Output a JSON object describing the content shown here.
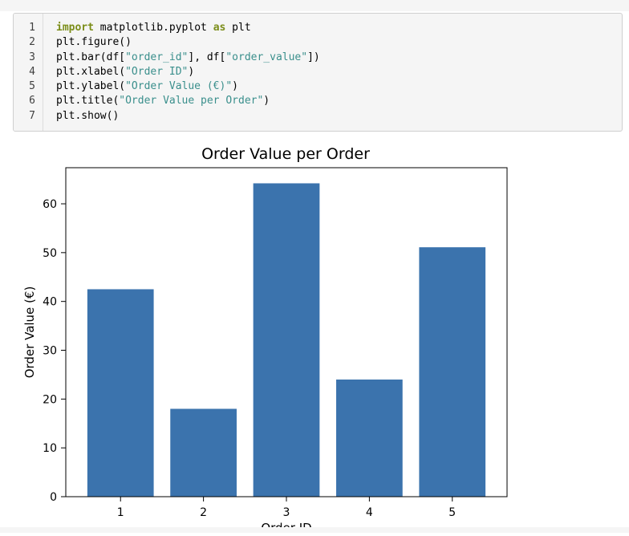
{
  "code_cell": {
    "lines": [
      {
        "n": "1",
        "tokens": [
          {
            "t": "import",
            "k": "kw"
          },
          {
            "t": " matplotlib.pyplot ",
            "k": ""
          },
          {
            "t": "as",
            "k": "kw"
          },
          {
            "t": " plt",
            "k": ""
          }
        ]
      },
      {
        "n": "2",
        "tokens": [
          {
            "t": "plt.figure()",
            "k": ""
          }
        ]
      },
      {
        "n": "3",
        "tokens": [
          {
            "t": "plt.bar(df[",
            "k": ""
          },
          {
            "t": "\"order_id\"",
            "k": "str"
          },
          {
            "t": "], df[",
            "k": ""
          },
          {
            "t": "\"order_value\"",
            "k": "str"
          },
          {
            "t": "])",
            "k": ""
          }
        ]
      },
      {
        "n": "4",
        "tokens": [
          {
            "t": "plt.xlabel(",
            "k": ""
          },
          {
            "t": "\"Order ID\"",
            "k": "str"
          },
          {
            "t": ")",
            "k": ""
          }
        ]
      },
      {
        "n": "5",
        "tokens": [
          {
            "t": "plt.ylabel(",
            "k": ""
          },
          {
            "t": "\"Order Value (€)\"",
            "k": "str"
          },
          {
            "t": ")",
            "k": ""
          }
        ]
      },
      {
        "n": "6",
        "tokens": [
          {
            "t": "plt.title(",
            "k": ""
          },
          {
            "t": "\"Order Value per Order\"",
            "k": "str"
          },
          {
            "t": ")",
            "k": ""
          }
        ]
      },
      {
        "n": "7",
        "tokens": [
          {
            "t": "plt.show()",
            "k": ""
          }
        ]
      }
    ]
  },
  "chart_data": {
    "type": "bar",
    "title": "Order Value per Order",
    "xlabel": "Order ID",
    "ylabel": "Order Value (€)",
    "categories": [
      "1",
      "2",
      "3",
      "4",
      "5"
    ],
    "values": [
      42.5,
      18,
      64.2,
      24,
      51.1
    ],
    "ylim": [
      0,
      67.4
    ],
    "yticks": [
      0,
      10,
      20,
      30,
      40,
      50,
      60
    ],
    "grid": false,
    "bar_color": "#3b73ad"
  }
}
